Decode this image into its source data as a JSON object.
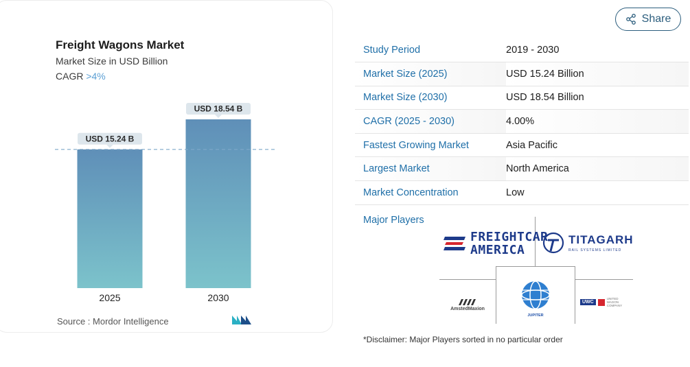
{
  "chart_data": {
    "type": "bar",
    "title": "Freight Wagons Market",
    "subtitle": "Market Size in USD Billion",
    "cagr_label": "CAGR",
    "cagr_value": ">4%",
    "categories": [
      "2025",
      "2030"
    ],
    "values": [
      15.24,
      18.54
    ],
    "data_labels": [
      "USD 15.24 B",
      "USD 18.54 B"
    ],
    "ylim": [
      0,
      20.5
    ],
    "reference_line": 15.24,
    "grid": false,
    "bar_gradient": [
      "#5f8fb8",
      "#7cc3cb"
    ]
  },
  "source": "Source :  Mordor Intelligence",
  "share": {
    "label": "Share",
    "icon": "share-icon"
  },
  "info_table": [
    {
      "key": "Study Period",
      "value": "2019 - 2030"
    },
    {
      "key": "Market Size (2025)",
      "value": "USD 15.24 Billion"
    },
    {
      "key": "Market Size (2030)",
      "value": "USD 18.54 Billion"
    },
    {
      "key": "CAGR (2025 - 2030)",
      "value": "4.00%"
    },
    {
      "key": "Fastest Growing Market",
      "value": "Asia Pacific"
    },
    {
      "key": "Largest Market",
      "value": "North America"
    },
    {
      "key": "Market Concentration",
      "value": "Low"
    }
  ],
  "players": {
    "label": "Major Players",
    "freightcar": {
      "line1": "FREIGHTCAR",
      "line2": "AMERICA"
    },
    "titagarh": {
      "name": "TITAGARH",
      "sub": "RAIL SYSTEMS LIMITED"
    },
    "amsted": "AmstedMaxion",
    "jupiter": "JUPITER",
    "uwc": {
      "name": "UWC",
      "sub1": "UNITED",
      "sub2": "WAGON",
      "sub3": "COMPANY"
    }
  },
  "disclaimer": "*Disclaimer: Major Players sorted in no particular order",
  "colors": {
    "accent": "#1f6fa8",
    "bar_top": "#5f8fb8",
    "bar_bottom": "#7cc3cb",
    "label_bg": "#dde6ec"
  }
}
